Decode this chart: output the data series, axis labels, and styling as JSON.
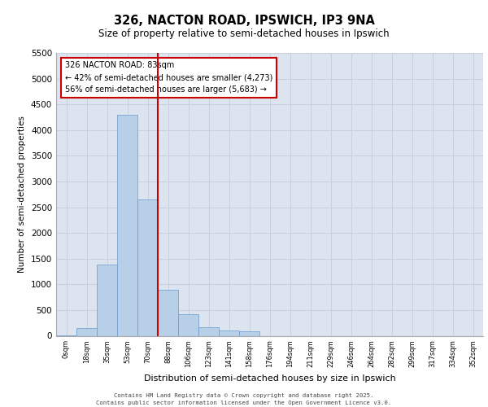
{
  "title_line1": "326, NACTON ROAD, IPSWICH, IP3 9NA",
  "title_line2": "Size of property relative to semi-detached houses in Ipswich",
  "xlabel": "Distribution of semi-detached houses by size in Ipswich",
  "ylabel": "Number of semi-detached properties",
  "categories": [
    "0sqm",
    "18sqm",
    "35sqm",
    "53sqm",
    "70sqm",
    "88sqm",
    "106sqm",
    "123sqm",
    "141sqm",
    "158sqm",
    "176sqm",
    "194sqm",
    "211sqm",
    "229sqm",
    "246sqm",
    "264sqm",
    "282sqm",
    "299sqm",
    "317sqm",
    "334sqm",
    "352sqm"
  ],
  "bar_values": [
    5,
    150,
    1380,
    4300,
    2650,
    900,
    420,
    165,
    110,
    80,
    0,
    0,
    0,
    0,
    0,
    0,
    0,
    0,
    0,
    0,
    0
  ],
  "bar_color": "#b8cfe8",
  "bar_edge_color": "#6699cc",
  "marker_label": "326 NACTON ROAD: 83sqm",
  "pct_smaller": 42,
  "count_smaller": 4273,
  "pct_larger": 56,
  "count_larger": 5683,
  "vline_color": "#cc0000",
  "ylim": [
    0,
    5500
  ],
  "yticks": [
    0,
    500,
    1000,
    1500,
    2000,
    2500,
    3000,
    3500,
    4000,
    4500,
    5000,
    5500
  ],
  "grid_color": "#c8d0dc",
  "bg_color": "#dce4f0",
  "footer_line1": "Contains HM Land Registry data © Crown copyright and database right 2025.",
  "footer_line2": "Contains public sector information licensed under the Open Government Licence v3.0."
}
